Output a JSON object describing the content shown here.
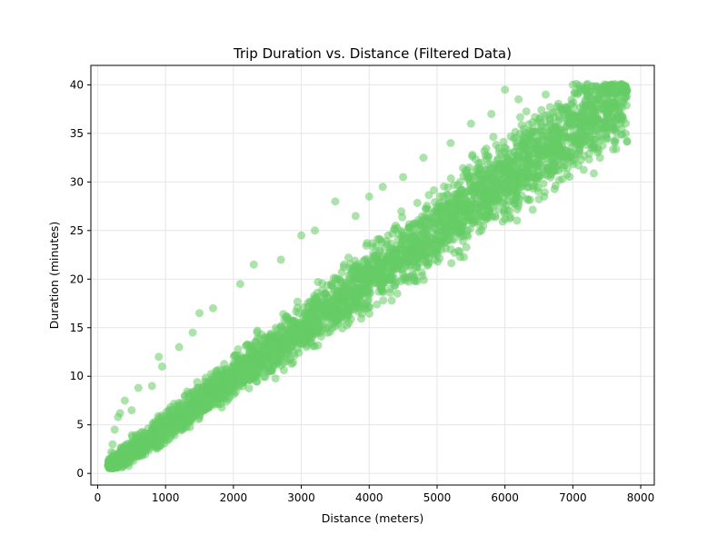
{
  "chart_data": {
    "type": "scatter",
    "title": "Trip Duration vs. Distance (Filtered Data)",
    "xlabel": "Distance (meters)",
    "ylabel": "Duration (minutes)",
    "xlim": [
      -100,
      8200
    ],
    "ylim": [
      -1.2,
      42
    ],
    "xticks": [
      0,
      1000,
      2000,
      3000,
      4000,
      5000,
      6000,
      7000,
      8000
    ],
    "yticks": [
      0,
      5,
      10,
      15,
      20,
      25,
      30,
      35,
      40
    ],
    "xtick_labels": [
      "0",
      "1000",
      "2000",
      "3000",
      "4000",
      "5000",
      "6000",
      "7000",
      "8000"
    ],
    "ytick_labels": [
      "0",
      "5",
      "10",
      "15",
      "20",
      "25",
      "30",
      "35",
      "40"
    ],
    "grid": true,
    "color": "#66cc66",
    "opacity": 0.55,
    "trend": {
      "slope_min_per_m": 0.0051,
      "intercept_min": -0.3
    },
    "points": [
      [
        150,
        0.8
      ],
      [
        180,
        1.5
      ],
      [
        200,
        2.2
      ],
      [
        220,
        3.0
      ],
      [
        250,
        4.5
      ],
      [
        300,
        5.8
      ],
      [
        330,
        6.2
      ],
      [
        400,
        7.5
      ],
      [
        500,
        6.5
      ],
      [
        600,
        8.8
      ],
      [
        800,
        9.0
      ],
      [
        900,
        12.0
      ],
      [
        950,
        11.0
      ],
      [
        1000,
        5.0
      ],
      [
        1200,
        13.0
      ],
      [
        1400,
        14.5
      ],
      [
        1500,
        16.5
      ],
      [
        1700,
        17.0
      ],
      [
        1800,
        9.0
      ],
      [
        2100,
        19.5
      ],
      [
        2300,
        21.5
      ],
      [
        2500,
        12.0
      ],
      [
        2700,
        22.0
      ],
      [
        3000,
        24.5
      ],
      [
        3200,
        25.0
      ],
      [
        3500,
        28.0
      ],
      [
        3700,
        15.5
      ],
      [
        3800,
        26.5
      ],
      [
        4000,
        28.5
      ],
      [
        4200,
        29.5
      ],
      [
        4500,
        30.5
      ],
      [
        4800,
        32.5
      ],
      [
        5000,
        23.0
      ],
      [
        5200,
        34.0
      ],
      [
        5500,
        36.0
      ],
      [
        5800,
        37.0
      ],
      [
        6000,
        39.5
      ],
      [
        6200,
        38.5
      ],
      [
        6400,
        30.5
      ],
      [
        6600,
        39.0
      ],
      [
        6800,
        30.2
      ],
      [
        7000,
        40.0
      ],
      [
        7200,
        40.0
      ],
      [
        7400,
        32.5
      ],
      [
        7500,
        40.0
      ],
      [
        7800,
        34.2
      ],
      [
        7800,
        39.5
      ],
      [
        7700,
        40.0
      ]
    ]
  }
}
